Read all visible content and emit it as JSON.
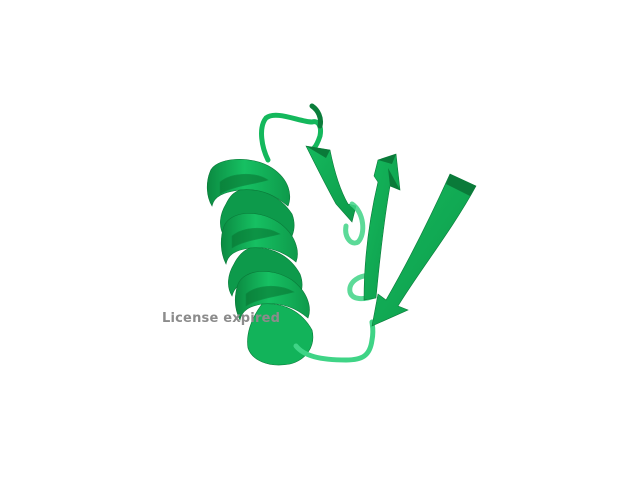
{
  "viewer": {
    "watermark_text": "License expired",
    "background_color": "#ffffff",
    "ribbon_color": "#12b85a",
    "ribbon_dark": "#0c8f44",
    "ribbon_light": "#2fd176",
    "loop_color": "#3fd486"
  }
}
